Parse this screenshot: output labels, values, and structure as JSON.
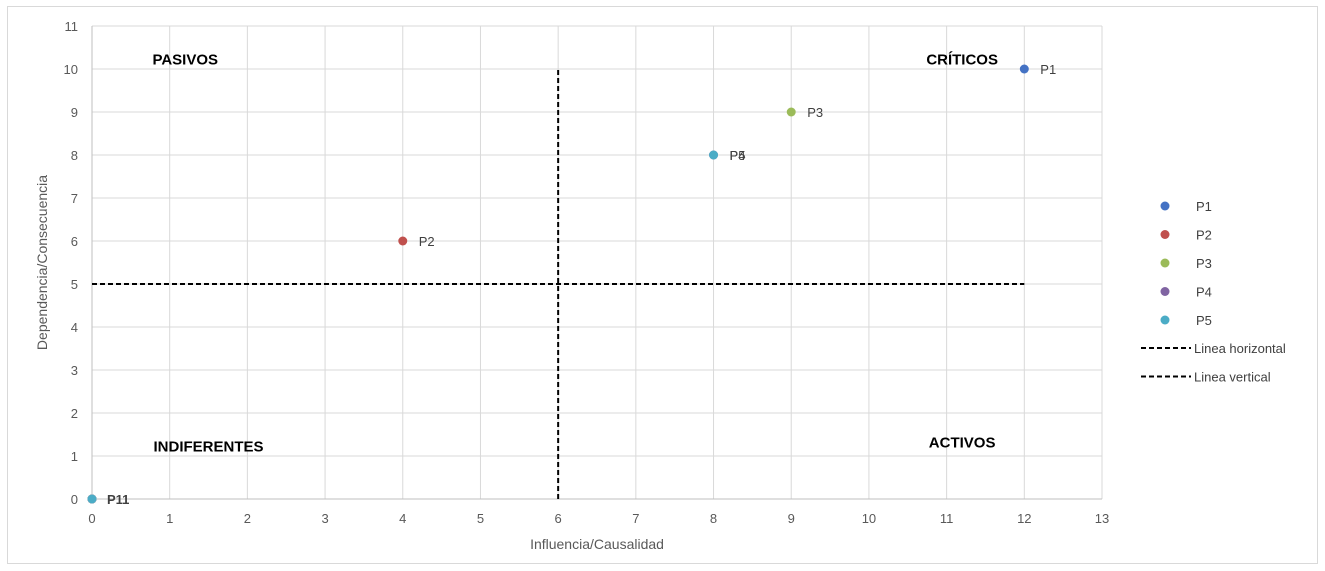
{
  "chart_data": {
    "type": "scatter",
    "xlabel": "Influencia/Causalidad",
    "ylabel": "Dependencia/Consecuencia",
    "xlim": [
      0,
      13
    ],
    "ylim": [
      0,
      11
    ],
    "x_ticks": [
      0,
      1,
      2,
      3,
      4,
      5,
      6,
      7,
      8,
      9,
      10,
      11,
      12,
      13
    ],
    "y_ticks": [
      0,
      1,
      2,
      3,
      4,
      5,
      6,
      7,
      8,
      9,
      10,
      11
    ],
    "grid": true,
    "legend_position": "right",
    "series": [
      {
        "name": "P1",
        "color": "#4472c4",
        "x": [
          12,
          0
        ],
        "y": [
          10,
          0
        ],
        "label": "P1"
      },
      {
        "name": "P2",
        "color": "#c0504d",
        "x": [
          4,
          0
        ],
        "y": [
          6,
          0
        ],
        "label": "P2"
      },
      {
        "name": "P3",
        "color": "#9bbb59",
        "x": [
          9,
          0
        ],
        "y": [
          9,
          0
        ],
        "label": "P3"
      },
      {
        "name": "P4",
        "color": "#8064a2",
        "x": [
          8,
          0
        ],
        "y": [
          8,
          0
        ],
        "label": "P4"
      },
      {
        "name": "P5",
        "color": "#4bacc6",
        "x": [
          8,
          0
        ],
        "y": [
          8,
          0
        ],
        "label": "P5"
      }
    ],
    "lines": [
      {
        "name": "Linea horizontal",
        "color": "#000000",
        "x": [
          0,
          12
        ],
        "y": [
          5,
          5
        ]
      },
      {
        "name": "Linea vertical",
        "color": "#000000",
        "x": [
          6,
          6
        ],
        "y": [
          0,
          10
        ]
      }
    ],
    "quadrant_labels": [
      {
        "text": "PASIVOS",
        "x": 1.2,
        "y": 10.1
      },
      {
        "text": "CRÍTICOS",
        "x": 11.2,
        "y": 10.1
      },
      {
        "text": "INDIFERENTES",
        "x": 1.5,
        "y": 1.1
      },
      {
        "text": "ACTIVOS",
        "x": 11.2,
        "y": 1.2
      }
    ],
    "origin_label_overlap": "P11"
  }
}
